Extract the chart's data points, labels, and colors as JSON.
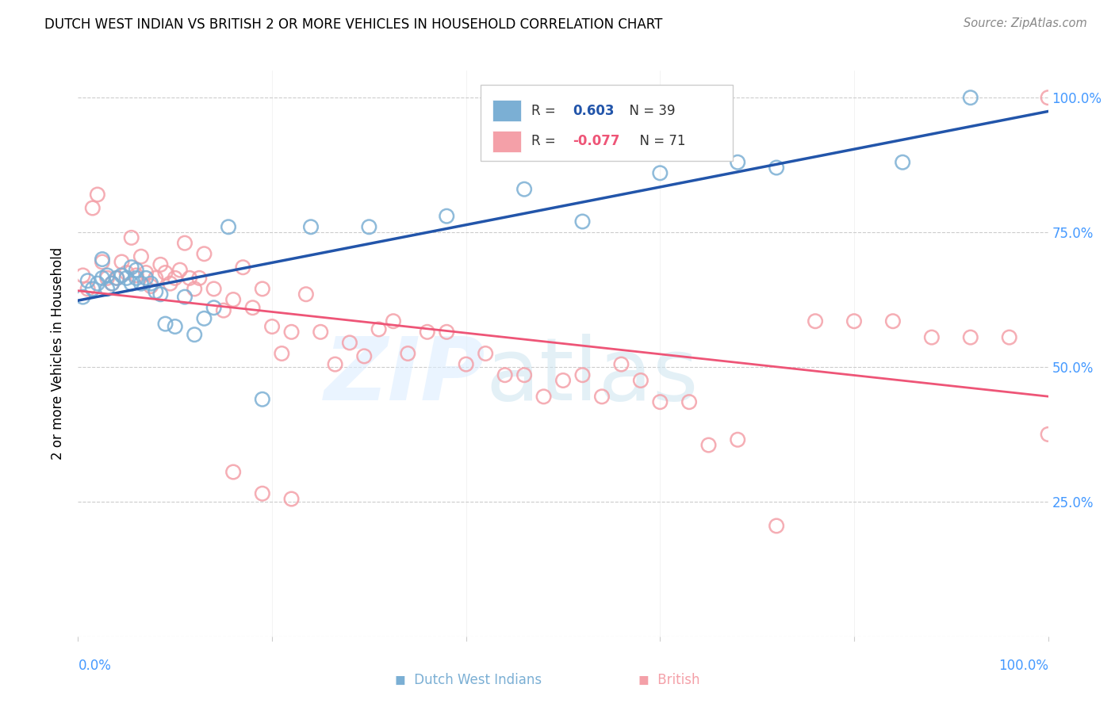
{
  "title": "DUTCH WEST INDIAN VS BRITISH 2 OR MORE VEHICLES IN HOUSEHOLD CORRELATION CHART",
  "source": "Source: ZipAtlas.com",
  "ylabel": "2 or more Vehicles in Household",
  "blue_color": "#7BAFD4",
  "pink_color": "#F4A0A8",
  "blue_line_color": "#2255AA",
  "pink_line_color": "#EE5577",
  "label_color": "#4499FF",
  "blue_R": "0.603",
  "pink_R": "-0.077",
  "blue_N": "39",
  "pink_N": "71",
  "blue_scatter_x": [
    0.005,
    0.01,
    0.015,
    0.02,
    0.025,
    0.025,
    0.03,
    0.03,
    0.035,
    0.04,
    0.045,
    0.05,
    0.055,
    0.055,
    0.06,
    0.06,
    0.065,
    0.07,
    0.075,
    0.08,
    0.085,
    0.09,
    0.1,
    0.11,
    0.12,
    0.13,
    0.14,
    0.155,
    0.19,
    0.24,
    0.3,
    0.38,
    0.46,
    0.52,
    0.6,
    0.68,
    0.72,
    0.85,
    0.92
  ],
  "blue_scatter_y": [
    0.63,
    0.66,
    0.645,
    0.655,
    0.665,
    0.7,
    0.67,
    0.645,
    0.655,
    0.665,
    0.67,
    0.665,
    0.655,
    0.685,
    0.665,
    0.68,
    0.655,
    0.665,
    0.655,
    0.64,
    0.635,
    0.58,
    0.575,
    0.63,
    0.56,
    0.59,
    0.61,
    0.76,
    0.44,
    0.76,
    0.76,
    0.78,
    0.83,
    0.77,
    0.86,
    0.88,
    0.87,
    0.88,
    1.0
  ],
  "pink_scatter_x": [
    0.005,
    0.01,
    0.015,
    0.02,
    0.025,
    0.03,
    0.035,
    0.04,
    0.045,
    0.05,
    0.055,
    0.06,
    0.065,
    0.07,
    0.075,
    0.08,
    0.085,
    0.09,
    0.095,
    0.1,
    0.105,
    0.11,
    0.115,
    0.12,
    0.125,
    0.13,
    0.14,
    0.15,
    0.16,
    0.17,
    0.18,
    0.19,
    0.2,
    0.21,
    0.22,
    0.235,
    0.25,
    0.265,
    0.28,
    0.295,
    0.31,
    0.325,
    0.34,
    0.36,
    0.38,
    0.4,
    0.42,
    0.44,
    0.46,
    0.48,
    0.5,
    0.52,
    0.54,
    0.56,
    0.58,
    0.6,
    0.63,
    0.65,
    0.68,
    0.72,
    0.76,
    0.8,
    0.84,
    0.88,
    0.92,
    0.96,
    1.0,
    0.16,
    0.19,
    0.22,
    1.0
  ],
  "pink_scatter_y": [
    0.67,
    0.645,
    0.795,
    0.82,
    0.695,
    0.665,
    0.655,
    0.665,
    0.695,
    0.675,
    0.74,
    0.67,
    0.705,
    0.675,
    0.65,
    0.665,
    0.69,
    0.675,
    0.655,
    0.665,
    0.68,
    0.73,
    0.665,
    0.645,
    0.665,
    0.71,
    0.645,
    0.605,
    0.625,
    0.685,
    0.61,
    0.645,
    0.575,
    0.525,
    0.565,
    0.635,
    0.565,
    0.505,
    0.545,
    0.52,
    0.57,
    0.585,
    0.525,
    0.565,
    0.565,
    0.505,
    0.525,
    0.485,
    0.485,
    0.445,
    0.475,
    0.485,
    0.445,
    0.505,
    0.475,
    0.435,
    0.435,
    0.355,
    0.365,
    0.205,
    0.585,
    0.585,
    0.585,
    0.555,
    0.555,
    0.555,
    1.0,
    0.305,
    0.265,
    0.255,
    0.375
  ]
}
